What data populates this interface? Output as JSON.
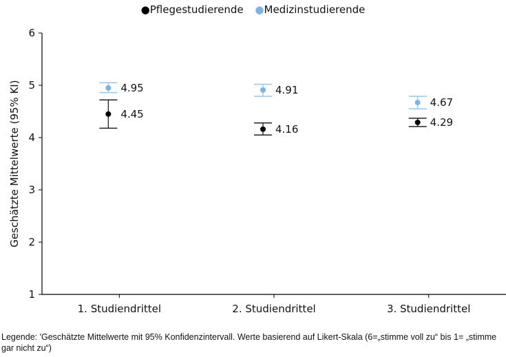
{
  "chart_data": {
    "type": "scatter",
    "categories": [
      "1. Studiendrittel",
      "2. Studiendrittel",
      "3. Studiendrittel"
    ],
    "series": [
      {
        "name": "Pflegestudierende",
        "color": "#000000",
        "errorbar_color": "#222222",
        "values": [
          4.45,
          4.16,
          4.29
        ],
        "ci_low": [
          4.18,
          4.05,
          4.21
        ],
        "ci_high": [
          4.72,
          4.28,
          4.37
        ],
        "labels": [
          "4.45",
          "4.16",
          "4.29"
        ]
      },
      {
        "name": "Medizinstudierende",
        "color": "#7fb2e5",
        "errorbar_color": "#9cc4ea",
        "values": [
          4.95,
          4.91,
          4.67
        ],
        "ci_low": [
          4.86,
          4.79,
          4.55
        ],
        "ci_high": [
          5.05,
          5.02,
          4.79
        ],
        "labels": [
          "4.95",
          "4.91",
          "4.67"
        ]
      }
    ],
    "yticks": [
      "1",
      "2",
      "3",
      "4",
      "5",
      "6"
    ],
    "ylabel": "Geschätzte Mittelwerte (95% KI)",
    "xlabel": "",
    "ylim": [
      1,
      6
    ],
    "legend_position": "top-center",
    "grid": false
  },
  "legend": {
    "dot": "●",
    "items": [
      "Pflegestudierende",
      "Medizinstudierende"
    ]
  },
  "caption": "Legende: 'Geschätzte Mittelwerte mit 95% Konfidenzintervall. Werte basierend auf Likert-Skala (6=„stimme voll zu“ bis 1= „stimme gar nicht zu“)"
}
